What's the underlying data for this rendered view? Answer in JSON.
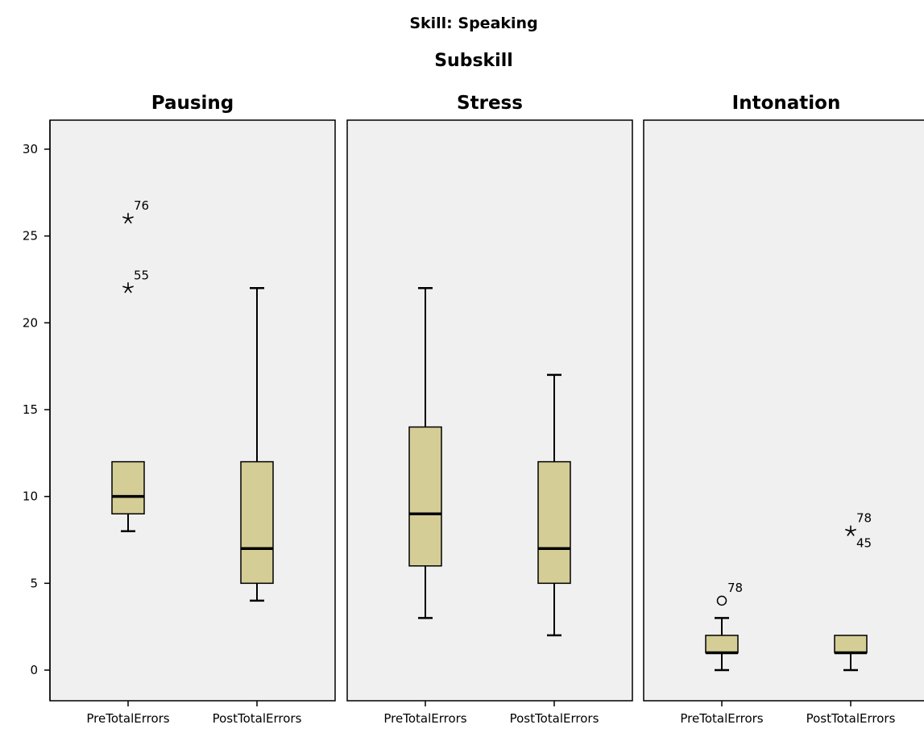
{
  "chart_data": {
    "type": "boxplot",
    "title": "Skill: Speaking",
    "panel_header": "Subskill",
    "categories": [
      "PreTotalErrors",
      "PostTotalErrors"
    ],
    "ylim": [
      0,
      30
    ],
    "yticks": [
      0,
      5,
      10,
      15,
      20,
      25,
      30
    ],
    "ytick_labels": [
      "0",
      "5",
      "10",
      "15",
      "20",
      "25",
      "30"
    ],
    "grid": false,
    "box_fill": "#d4cd96",
    "panel_background": "#f0f0f0",
    "panels": [
      {
        "name": "Pausing",
        "boxes": [
          {
            "category": "PreTotalErrors",
            "min": 8,
            "q1": 9,
            "median": 10,
            "q3": 12,
            "max": 12,
            "outliers": [
              {
                "value": 26,
                "marker": "star",
                "label": "76"
              },
              {
                "value": 22,
                "marker": "star",
                "label": "55"
              }
            ]
          },
          {
            "category": "PostTotalErrors",
            "min": 4,
            "q1": 5,
            "median": 7,
            "q3": 12,
            "max": 22,
            "outliers": []
          }
        ]
      },
      {
        "name": "Stress",
        "boxes": [
          {
            "category": "PreTotalErrors",
            "min": 3,
            "q1": 6,
            "median": 9,
            "q3": 14,
            "max": 22,
            "outliers": []
          },
          {
            "category": "PostTotalErrors",
            "min": 2,
            "q1": 5,
            "median": 7,
            "q3": 12,
            "max": 17,
            "outliers": []
          }
        ]
      },
      {
        "name": "Intonation",
        "boxes": [
          {
            "category": "PreTotalErrors",
            "min": 0,
            "q1": 1,
            "median": 1,
            "q3": 2,
            "max": 3,
            "outliers": [
              {
                "value": 4,
                "marker": "circle",
                "label": "78"
              }
            ]
          },
          {
            "category": "PostTotalErrors",
            "min": 0,
            "q1": 1,
            "median": 1,
            "q3": 2,
            "max": 2,
            "outliers": [
              {
                "value": 8,
                "marker": "star",
                "label": "78",
                "label_below": "45"
              }
            ]
          }
        ]
      }
    ]
  }
}
